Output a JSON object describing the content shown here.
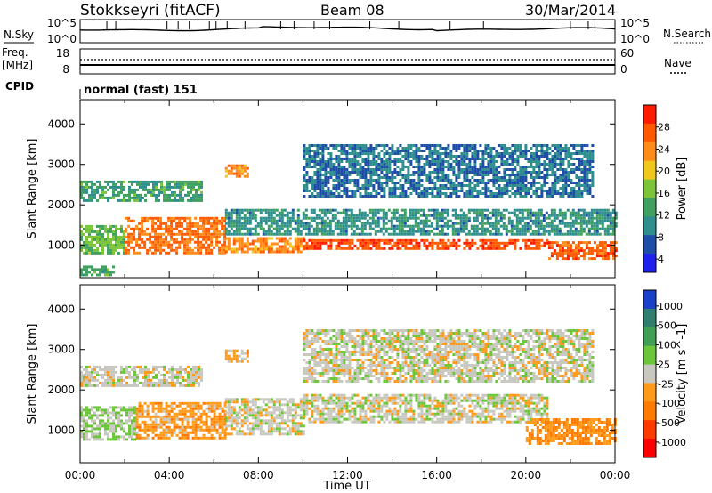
{
  "header": {
    "station": "Stokkseyri (fitACF)",
    "beam": "Beam 08",
    "date": "30/Mar/2014"
  },
  "noise_panel": {
    "left_label": "N.Sky",
    "right_label": "N.Search",
    "ticks_left": [
      "10^5",
      "10^0"
    ],
    "ticks_right": [
      "10^5",
      "10^0"
    ]
  },
  "freq_panel": {
    "left_label_1": "Freq.",
    "left_label_2": "[MHz]",
    "ticks_left": [
      "18",
      "8"
    ],
    "ticks_right": [
      "60",
      "0"
    ],
    "right_label": "Nave"
  },
  "cpid_panel": {
    "label": "CPID",
    "value": "normal (fast) 151"
  },
  "x_axis": {
    "label": "Time UT",
    "ticks": [
      "00:00",
      "04:00",
      "08:00",
      "12:00",
      "16:00",
      "20:00",
      "00:00"
    ]
  },
  "colors": {
    "power_scale": [
      "#1f1ff0",
      "#1f4ea8",
      "#2f8f8f",
      "#3fa060",
      "#7cc43a",
      "#f2c71c",
      "#ff8c1a",
      "#ff5a00",
      "#ff1a00"
    ],
    "velocity_scale": [
      "#1a3fc8",
      "#2f7f6f",
      "#3fa055",
      "#6cc63a",
      "#c8c8c0",
      "#ff9a1a",
      "#ff7a00",
      "#ff3a00",
      "#ff0000"
    ]
  },
  "chart_data": [
    {
      "type": "heatmap",
      "name": "power",
      "ylabel": "Slant Range [km]",
      "xlabel": "",
      "y_ticks": [
        1000,
        2000,
        3000,
        4000
      ],
      "ylim": [
        200,
        4600
      ],
      "xlim_hours": [
        0,
        24
      ],
      "colorbar": {
        "label": "Power [dB]",
        "ticks": [
          "28",
          "24",
          "20",
          "16",
          "12",
          "8",
          "4"
        ],
        "range": [
          0,
          30
        ]
      },
      "features": [
        {
          "t0": 0.0,
          "t1": 2.0,
          "r0": 800,
          "r1": 1500,
          "value": 14
        },
        {
          "t0": 2.0,
          "t1": 6.5,
          "r0": 800,
          "r1": 1700,
          "value": 24
        },
        {
          "t0": 6.5,
          "t1": 10.0,
          "r0": 850,
          "r1": 1200,
          "value": 22
        },
        {
          "t0": 10.0,
          "t1": 21.0,
          "r0": 900,
          "r1": 1150,
          "value": 26
        },
        {
          "t0": 21.0,
          "t1": 24.0,
          "r0": 700,
          "r1": 1100,
          "value": 25
        },
        {
          "t0": 6.5,
          "t1": 24.0,
          "r0": 1250,
          "r1": 1900,
          "value": 9
        },
        {
          "t0": 0.0,
          "t1": 5.5,
          "r0": 2100,
          "r1": 2600,
          "value": 11
        },
        {
          "t0": 6.5,
          "t1": 7.5,
          "r0": 2700,
          "r1": 3000,
          "value": 22
        },
        {
          "t0": 10.0,
          "t1": 23.0,
          "r0": 2200,
          "r1": 3500,
          "value": 7
        },
        {
          "t0": 0.0,
          "t1": 1.5,
          "r0": 300,
          "r1": 500,
          "value": 12
        }
      ]
    },
    {
      "type": "heatmap",
      "name": "velocity",
      "ylabel": "Slant Range [km]",
      "xlabel": "Time UT",
      "y_ticks": [
        1000,
        2000,
        3000,
        4000
      ],
      "ylim": [
        200,
        4600
      ],
      "xlim_hours": [
        0,
        24
      ],
      "colorbar": {
        "label": "Velocity [m s^-1]",
        "ticks": [
          "1000",
          "500",
          "100",
          "25",
          "-25",
          "-100",
          "-500",
          "-1000"
        ],
        "range": [
          -1200,
          1200
        ]
      },
      "features": [
        {
          "t0": 0.0,
          "t1": 2.5,
          "r0": 800,
          "r1": 1600,
          "value": 150
        },
        {
          "t0": 2.5,
          "t1": 6.5,
          "r0": 800,
          "r1": 1700,
          "value": -300
        },
        {
          "t0": 6.5,
          "t1": 10.0,
          "r0": 900,
          "r1": 1800,
          "value": 0
        },
        {
          "t0": 10.0,
          "t1": 21.0,
          "r0": 1200,
          "r1": 1900,
          "value": 0
        },
        {
          "t0": 20.0,
          "t1": 24.0,
          "r0": 700,
          "r1": 1300,
          "value": -400
        },
        {
          "t0": 0.0,
          "t1": 5.5,
          "r0": 2100,
          "r1": 2600,
          "value": 0
        },
        {
          "t0": 6.5,
          "t1": 7.5,
          "r0": 2700,
          "r1": 3000,
          "value": -200
        },
        {
          "t0": 10.0,
          "t1": 23.0,
          "r0": 2200,
          "r1": 3500,
          "value": 0
        }
      ]
    }
  ]
}
